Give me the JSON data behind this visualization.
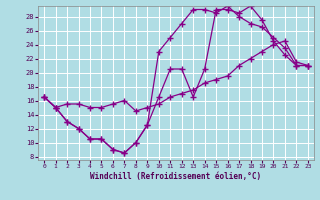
{
  "xlabel": "Windchill (Refroidissement éolien,°C)",
  "background_color": "#b0dde4",
  "grid_color": "#ffffff",
  "line_color": "#880088",
  "line_width": 0.9,
  "marker": "+",
  "marker_size": 4,
  "xticks": [
    0,
    1,
    2,
    3,
    4,
    5,
    6,
    7,
    8,
    9,
    10,
    11,
    12,
    13,
    14,
    15,
    16,
    17,
    18,
    19,
    20,
    21,
    22,
    23
  ],
  "yticks": [
    8,
    10,
    12,
    14,
    16,
    18,
    20,
    22,
    24,
    26,
    28
  ],
  "xlim": [
    -0.5,
    23.5
  ],
  "ylim": [
    7.5,
    29.5
  ],
  "curve1_x": [
    0,
    1,
    2,
    3,
    4,
    5,
    6,
    7,
    8,
    9,
    10,
    11,
    12,
    13,
    14,
    15,
    16,
    17,
    18,
    19,
    20,
    21,
    22,
    23
  ],
  "curve1_y": [
    16.5,
    15.0,
    13.0,
    12.0,
    10.5,
    10.5,
    9.0,
    8.5,
    10.0,
    12.5,
    16.5,
    20.5,
    20.5,
    16.5,
    20.5,
    29.0,
    29.0,
    28.5,
    29.5,
    27.5,
    24.5,
    22.5,
    21.0,
    21.0
  ],
  "curve2_x": [
    0,
    1,
    2,
    3,
    4,
    5,
    6,
    7,
    8,
    9,
    10,
    11,
    12,
    13,
    14,
    15,
    16,
    17,
    18,
    19,
    20,
    21,
    22,
    23
  ],
  "curve2_y": [
    16.5,
    15.0,
    13.0,
    12.0,
    10.5,
    10.5,
    9.0,
    8.5,
    10.0,
    12.5,
    23.0,
    25.0,
    27.0,
    29.0,
    29.0,
    28.5,
    29.5,
    28.0,
    27.0,
    26.5,
    25.0,
    23.5,
    21.0,
    21.0
  ],
  "curve3_x": [
    0,
    1,
    2,
    3,
    4,
    5,
    6,
    7,
    8,
    9,
    10,
    11,
    12,
    13,
    14,
    15,
    16,
    17,
    18,
    19,
    20,
    21,
    22,
    23
  ],
  "curve3_y": [
    16.5,
    15.0,
    15.5,
    15.5,
    15.0,
    15.0,
    15.5,
    16.0,
    14.5,
    15.0,
    15.5,
    16.5,
    17.0,
    17.5,
    18.5,
    19.0,
    19.5,
    21.0,
    22.0,
    23.0,
    24.0,
    24.5,
    21.5,
    21.0
  ]
}
